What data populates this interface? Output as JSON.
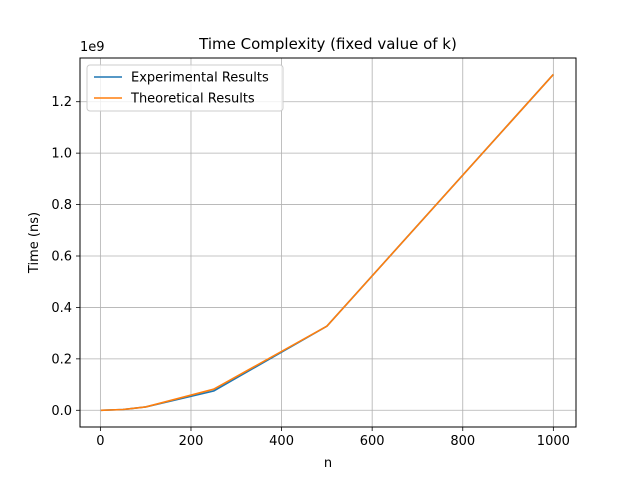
{
  "chart_data": {
    "type": "line",
    "title": "Time Complexity (fixed value of k)",
    "xlabel": "n",
    "ylabel": "Time (ns)",
    "y_offset_label": "1e9",
    "xlim": [
      -45,
      1050
    ],
    "ylim": [
      -0.065,
      1.37
    ],
    "x_ticks": [
      0,
      200,
      400,
      600,
      800,
      1000
    ],
    "x_tick_labels": [
      "0",
      "200",
      "400",
      "600",
      "800",
      "1000"
    ],
    "y_ticks": [
      0.0,
      0.2,
      0.4,
      0.6,
      0.8,
      1.0,
      1.2
    ],
    "y_tick_labels": [
      "0.0",
      "0.2",
      "0.4",
      "0.6",
      "0.8",
      "1.0",
      "1.2"
    ],
    "grid": true,
    "legend_position": "upper-left",
    "x": [
      1,
      50,
      100,
      250,
      500,
      1000
    ],
    "series": [
      {
        "name": "Experimental Results",
        "color": "#1f77b4",
        "values": [
          0.0,
          0.003,
          0.013,
          0.075,
          0.327,
          1.306
        ]
      },
      {
        "name": "Theoretical Results",
        "color": "#ff7f0e",
        "values": [
          0.0,
          0.003,
          0.013,
          0.082,
          0.327,
          1.306
        ]
      }
    ]
  }
}
